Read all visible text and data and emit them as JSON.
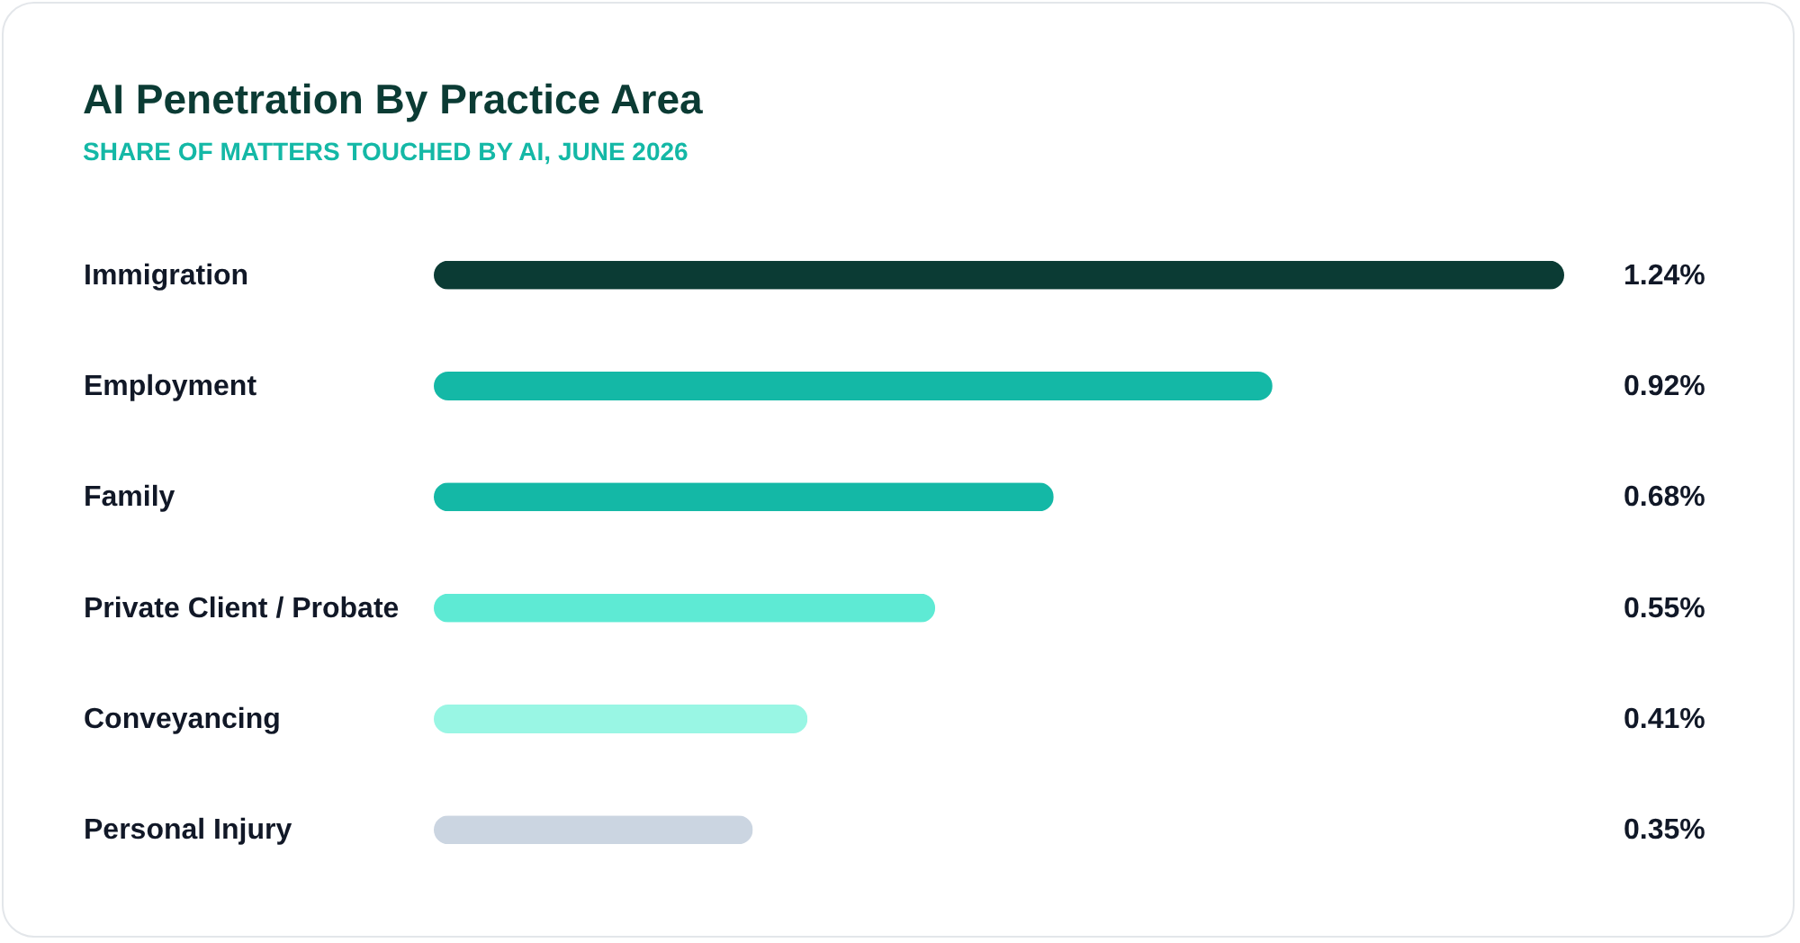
{
  "chart_data": {
    "type": "bar",
    "orientation": "horizontal",
    "title": "AI Penetration By Practice Area",
    "subtitle": "SHARE OF MATTERS TOUCHED BY AI, JUNE 2026",
    "categories": [
      "Immigration",
      "Employment",
      "Family",
      "Private Client / Probate",
      "Conveyancing",
      "Personal Injury"
    ],
    "values": [
      1.24,
      0.92,
      0.68,
      0.55,
      0.41,
      0.35
    ],
    "value_labels": [
      "1.24%",
      "0.92%",
      "0.68%",
      "0.55%",
      "0.41%",
      "0.35%"
    ],
    "colors": [
      "#0b3b34",
      "#14b8a6",
      "#14b8a6",
      "#5eead4",
      "#99f6e4",
      "#cbd5e1"
    ],
    "xlim": [
      0,
      1.24
    ],
    "tick_labels": "y"
  }
}
